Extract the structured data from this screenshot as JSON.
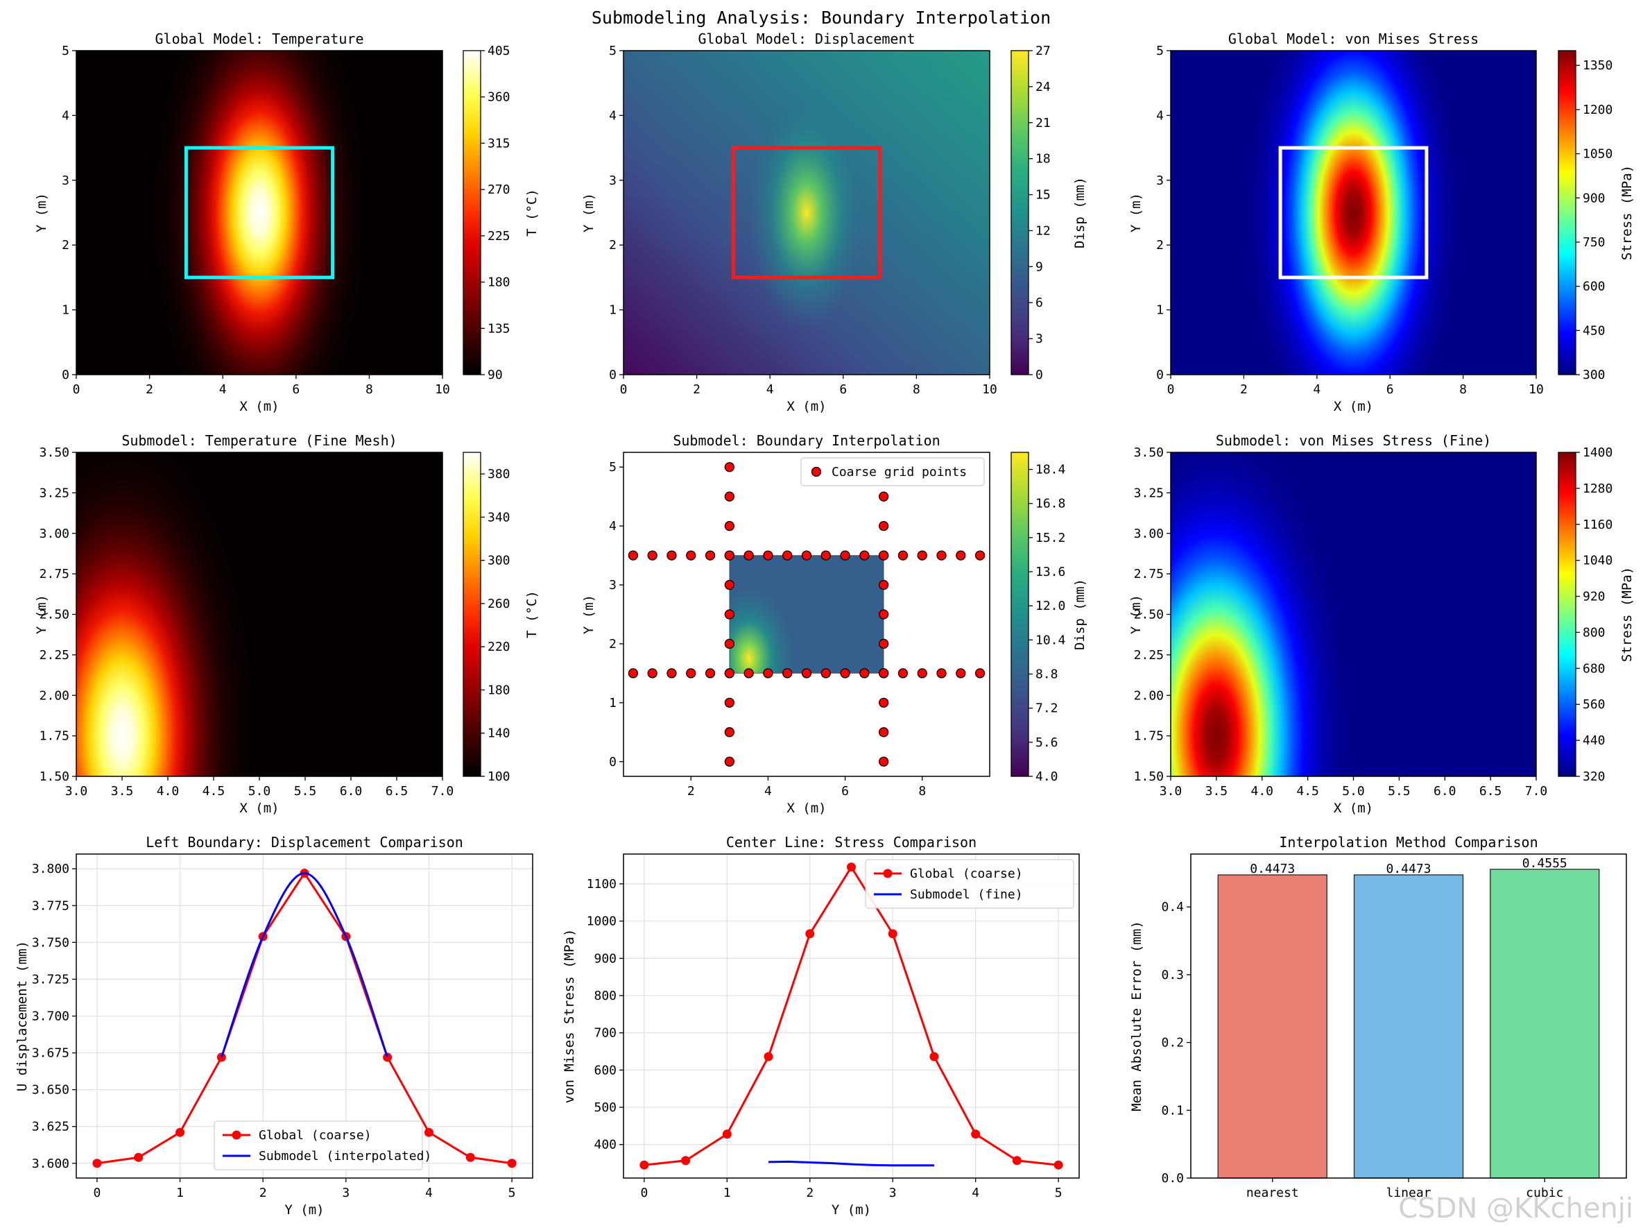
{
  "suptitle": "Submodeling Analysis: Boundary Interpolation",
  "watermark": "CSDN @KKchenji",
  "chart_data": [
    {
      "id": "p1",
      "type": "contour",
      "title": "Global Model: Temperature",
      "xlabel": "X (m)",
      "ylabel": "Y (m)",
      "xlim": [
        0,
        10
      ],
      "ylim": [
        0,
        5
      ],
      "xticks": [
        "0",
        "2",
        "4",
        "6",
        "8",
        "10"
      ],
      "yticks": [
        "0",
        "1",
        "2",
        "3",
        "4",
        "5"
      ],
      "colormap": "hot",
      "background_value": 90,
      "field": {
        "x0": 5,
        "y0": 2.5,
        "sx": 1.1,
        "sy": 1.1
      },
      "highlight_box": {
        "x": [
          3,
          7
        ],
        "y": [
          1.5,
          3.5
        ],
        "color": "#00ffff"
      },
      "colorbar": {
        "label": "T (°C)",
        "min": 90,
        "max": 405,
        "ticks": [
          "90",
          "135",
          "180",
          "225",
          "270",
          "315",
          "360",
          "405"
        ]
      }
    },
    {
      "id": "p2",
      "type": "contour",
      "title": "Global Model: Displacement",
      "xlabel": "X (m)",
      "ylabel": "Y (m)",
      "xlim": [
        0,
        10
      ],
      "ylim": [
        0,
        5
      ],
      "xticks": [
        "0",
        "2",
        "4",
        "6",
        "8",
        "10"
      ],
      "yticks": [
        "0",
        "1",
        "2",
        "3",
        "4",
        "5"
      ],
      "colormap": "viridis",
      "min_value": 0,
      "peak_value": 27,
      "highlight_box": {
        "x": [
          3,
          7
        ],
        "y": [
          1.5,
          3.5
        ],
        "color": "#ff1a1a"
      },
      "colorbar": {
        "label": "Disp (mm)",
        "min": 0,
        "max": 27,
        "ticks": [
          "0",
          "3",
          "6",
          "9",
          "12",
          "15",
          "18",
          "21",
          "24",
          "27"
        ]
      }
    },
    {
      "id": "p3",
      "type": "contour",
      "title": "Global Model: von Mises Stress",
      "xlabel": "X (m)",
      "ylabel": "Y (m)",
      "xlim": [
        0,
        10
      ],
      "ylim": [
        0,
        5
      ],
      "xticks": [
        "0",
        "2",
        "4",
        "6",
        "8",
        "10"
      ],
      "yticks": [
        "0",
        "1",
        "2",
        "3",
        "4",
        "5"
      ],
      "colormap": "jet",
      "background_value": 300,
      "field": {
        "x0": 5,
        "y0": 2.5,
        "sx": 1.1,
        "sy": 1.1
      },
      "highlight_box": {
        "x": [
          3,
          7
        ],
        "y": [
          1.5,
          3.5
        ],
        "color": "#ffffff"
      },
      "colorbar": {
        "label": "Stress (MPa)",
        "min": 300,
        "max": 1400,
        "ticks": [
          "300",
          "450",
          "600",
          "750",
          "900",
          "1050",
          "1200",
          "1350"
        ],
        "tick_values": [
          300,
          450,
          600,
          750,
          900,
          1050,
          1200,
          1350
        ]
      }
    },
    {
      "id": "p4",
      "type": "contour",
      "title": "Submodel: Temperature (Fine Mesh)",
      "xlabel": "X (m)",
      "ylabel": "Y (m)",
      "xlim": [
        3.0,
        7.0
      ],
      "ylim": [
        1.5,
        3.5
      ],
      "xticks": [
        "3.0",
        "3.5",
        "4.0",
        "4.5",
        "5.0",
        "5.5",
        "6.0",
        "6.5",
        "7.0"
      ],
      "yticks": [
        "1.50",
        "1.75",
        "2.00",
        "2.25",
        "2.50",
        "2.75",
        "3.00",
        "3.25",
        "3.50"
      ],
      "colormap": "hot",
      "background_value": 100,
      "field": {
        "x0": 3.5,
        "y0": 1.75,
        "sx": 0.55,
        "sy": 0.55
      },
      "colorbar": {
        "label": "T (°C)",
        "min": 100,
        "max": 400,
        "ticks": [
          "100",
          "140",
          "180",
          "220",
          "260",
          "300",
          "340",
          "380"
        ],
        "tick_values": [
          100,
          140,
          180,
          220,
          260,
          300,
          340,
          380
        ]
      }
    },
    {
      "id": "p5",
      "type": "contour+scatter",
      "title": "Submodel: Boundary Interpolation",
      "xlabel": "X (m)",
      "ylabel": "Y (m)",
      "xlim": [
        0.25,
        9.75
      ],
      "ylim": [
        -0.25,
        5.25
      ],
      "xticks": [
        "2",
        "4",
        "6",
        "8"
      ],
      "yticks": [
        "0",
        "1",
        "2",
        "3",
        "4",
        "5"
      ],
      "colormap": "viridis",
      "submodel_region": {
        "x": [
          3,
          7
        ],
        "y": [
          1.5,
          3.5
        ]
      },
      "field": {
        "x0": 3.5,
        "y0": 1.75,
        "sx": 0.35,
        "sy": 0.35
      },
      "legend": "Coarse grid points",
      "scatter": {
        "vertical_x": [
          3,
          7
        ],
        "vertical_y": [
          0,
          0.5,
          1,
          1.5,
          2,
          2.5,
          3,
          3.5,
          4,
          4.5,
          5
        ],
        "horizontal_y": [
          1.5,
          3.5
        ],
        "horizontal_x": [
          0.5,
          1,
          1.5,
          2,
          2.5,
          3,
          3.5,
          4,
          4.5,
          5,
          5.5,
          6,
          6.5,
          7,
          7.5,
          8,
          8.5,
          9,
          9.5
        ]
      },
      "colorbar": {
        "label": "Disp (mm)",
        "min": 4.0,
        "max": 19.2,
        "ticks": [
          "4.0",
          "5.6",
          "7.2",
          "8.8",
          "10.4",
          "12.0",
          "13.6",
          "15.2",
          "16.8",
          "18.4"
        ],
        "tick_values": [
          4.0,
          5.6,
          7.2,
          8.8,
          10.4,
          12.0,
          13.6,
          15.2,
          16.8,
          18.4
        ]
      }
    },
    {
      "id": "p6",
      "type": "contour",
      "title": "Submodel: von Mises Stress (Fine)",
      "xlabel": "X (m)",
      "ylabel": "Y (m)",
      "xlim": [
        3.0,
        7.0
      ],
      "ylim": [
        1.5,
        3.5
      ],
      "xticks": [
        "3.0",
        "3.5",
        "4.0",
        "4.5",
        "5.0",
        "5.5",
        "6.0",
        "6.5",
        "7.0"
      ],
      "yticks": [
        "1.50",
        "1.75",
        "2.00",
        "2.25",
        "2.50",
        "2.75",
        "3.00",
        "3.25",
        "3.50"
      ],
      "colormap": "jet",
      "background_value": 320,
      "field": {
        "x0": 3.5,
        "y0": 1.75,
        "sx": 0.55,
        "sy": 0.55
      },
      "colorbar": {
        "label": "Stress (MPa)",
        "min": 320,
        "max": 1400,
        "ticks": [
          "320",
          "440",
          "560",
          "680",
          "800",
          "920",
          "1040",
          "1160",
          "1280",
          "1400"
        ],
        "tick_values": [
          320,
          440,
          560,
          680,
          800,
          920,
          1040,
          1160,
          1280,
          1400
        ]
      }
    },
    {
      "id": "p7",
      "type": "line",
      "title": "Left Boundary: Displacement Comparison",
      "xlabel": "Y (m)",
      "ylabel": "U displacement (mm)",
      "xlim": [
        -0.25,
        5.25
      ],
      "ylim": [
        3.59,
        3.81
      ],
      "xticks": [
        "0",
        "1",
        "2",
        "3",
        "4",
        "5"
      ],
      "yticks": [
        "3.600",
        "3.625",
        "3.650",
        "3.675",
        "3.700",
        "3.725",
        "3.750",
        "3.775",
        "3.800"
      ],
      "legend_position": "lower center",
      "series": [
        {
          "name": "Global (coarse)",
          "color": "#ff0000",
          "marker": true,
          "x": [
            0,
            0.5,
            1,
            1.5,
            2,
            2.5,
            3,
            3.5,
            4,
            4.5,
            5
          ],
          "y": [
            3.6,
            3.604,
            3.621,
            3.672,
            3.754,
            3.797,
            3.754,
            3.672,
            3.621,
            3.604,
            3.6
          ]
        },
        {
          "name": "Submodel (interpolated)",
          "color": "#0000ff",
          "marker": false,
          "smooth": true,
          "x": [
            1.5,
            2,
            2.5,
            3,
            3.5
          ],
          "y": [
            3.672,
            3.754,
            3.797,
            3.754,
            3.672
          ]
        }
      ]
    },
    {
      "id": "p8",
      "type": "line",
      "title": "Center Line: Stress Comparison",
      "xlabel": "Y (m)",
      "ylabel": "von Mises Stress (MPa)",
      "xlim": [
        -0.25,
        5.25
      ],
      "ylim": [
        310,
        1180
      ],
      "xticks": [
        "0",
        "1",
        "2",
        "3",
        "4",
        "5"
      ],
      "yticks": [
        "400",
        "500",
        "600",
        "700",
        "800",
        "900",
        "1000",
        "1100"
      ],
      "legend_position": "upper right",
      "series": [
        {
          "name": "Global (coarse)",
          "color": "#ff0000",
          "marker": true,
          "x": [
            0,
            0.5,
            1,
            1.5,
            2,
            2.5,
            3,
            3.5,
            4,
            4.5,
            5
          ],
          "y": [
            345,
            357,
            428,
            636,
            966,
            1145,
            966,
            636,
            428,
            357,
            345
          ]
        },
        {
          "name": "Submodel (fine)",
          "color": "#0000ff",
          "marker": false,
          "x": [
            1.5,
            1.75,
            2.0,
            2.25,
            2.5,
            2.75,
            3.0,
            3.25,
            3.5
          ],
          "y": [
            353,
            354,
            352,
            350,
            347,
            345,
            344,
            344,
            344
          ]
        }
      ]
    },
    {
      "id": "p9",
      "type": "bar",
      "title": "Interpolation Method Comparison",
      "ylabel": "Mean Absolute Error (mm)",
      "ylim": [
        0,
        0.478
      ],
      "yticks": [
        "0.0",
        "0.1",
        "0.2",
        "0.3",
        "0.4"
      ],
      "categories": [
        "nearest",
        "linear",
        "cubic"
      ],
      "values": [
        0.4473,
        0.4473,
        0.4555
      ],
      "value_labels": [
        "0.4473",
        "0.4473",
        "0.4555"
      ],
      "colors": [
        "#e8685a",
        "#5dade2",
        "#58d68d"
      ]
    }
  ]
}
